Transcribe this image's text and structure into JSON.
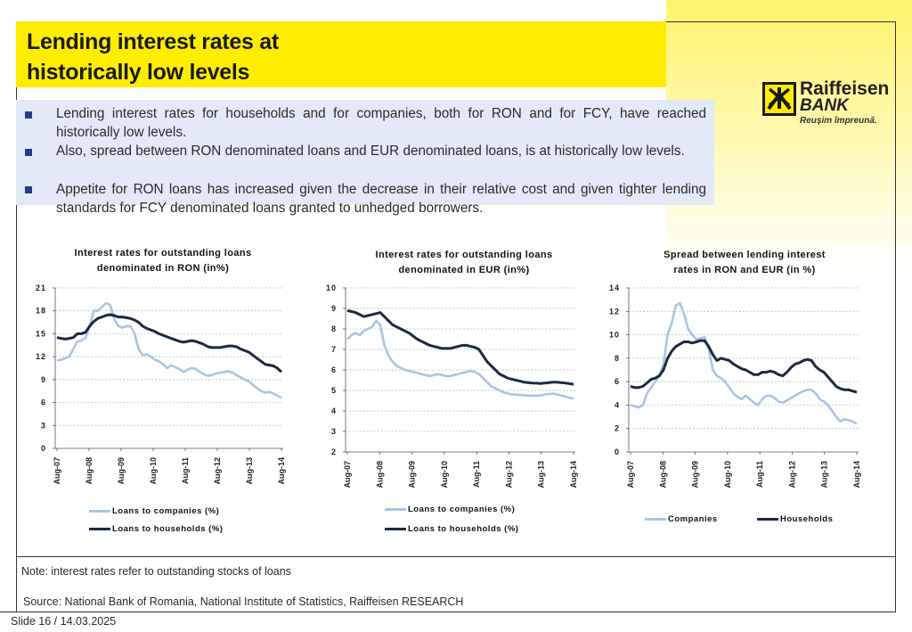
{
  "title": {
    "line1": "Lending interest rates at",
    "line2": "historically low levels"
  },
  "bullets": [
    "Lending interest rates for households and for companies, both for RON and for FCY, have reached historically low levels.",
    "Also, spread between RON denominated loans and EUR denominated loans, is at historically low levels.",
    "Appetite for RON loans has increased given the decrease in their relative cost and given tighter lending standards for FCY denominated loans granted to unhedged borrowers."
  ],
  "logo": {
    "name1": "Raiffeisen",
    "name2": "BANK",
    "slogan": "Reușim împreună."
  },
  "colors": {
    "companies": "#a9c6e3",
    "households": "#1c2a44",
    "accent_yellow": "#ffed00"
  },
  "chart_data": [
    {
      "type": "line",
      "title_line1": "Interest rates for outstanding loans",
      "title_line2": "denominated in RON (in%)",
      "ylim": [
        0,
        21
      ],
      "yticks": [
        "0",
        "3",
        "6",
        "9",
        "12",
        "15",
        "18",
        "21"
      ],
      "xticks": [
        "Aug-07",
        "Aug-08",
        "Aug-09",
        "Aug-10",
        "Aug-11",
        "Aug-12",
        "Aug-13",
        "Aug-14"
      ],
      "legend": [
        "Loans to companies (%)",
        "Loans to households (%)"
      ],
      "series": [
        {
          "name": "Loans to companies (%)",
          "values": [
            11.5,
            11.6,
            11.8,
            12,
            13,
            14,
            14.1,
            14.5,
            16,
            18,
            18,
            18.5,
            19,
            18.8,
            17,
            16,
            15.8,
            16,
            16,
            15,
            13,
            12.2,
            12.3,
            12,
            11.6,
            11.4,
            11,
            10.5,
            10.9,
            10.6,
            10.4,
            10,
            10.3,
            10.5,
            10.4,
            10,
            9.7,
            9.5,
            9.6,
            9.8,
            9.9,
            10,
            10.1,
            9.9,
            9.6,
            9.3,
            9,
            8.8,
            8.3,
            7.9,
            7.5,
            7.3,
            7.4,
            7.2,
            6.9,
            6.6
          ]
        },
        {
          "name": "Loans to households (%)",
          "values": [
            14.5,
            14.4,
            14.3,
            14.4,
            14.5,
            15,
            15,
            15.2,
            16,
            16.6,
            17,
            17.2,
            17.4,
            17.5,
            17.4,
            17.2,
            17.2,
            17.1,
            17,
            16.8,
            16.5,
            16,
            15.7,
            15.5,
            15.3,
            15,
            14.8,
            14.6,
            14.4,
            14.2,
            14,
            13.9,
            14,
            14.1,
            14,
            13.8,
            13.6,
            13.3,
            13.2,
            13.2,
            13.2,
            13.3,
            13.4,
            13.4,
            13.3,
            13,
            12.8,
            12.6,
            12.2,
            11.8,
            11.4,
            11,
            10.9,
            10.8,
            10.5,
            10
          ]
        }
      ]
    },
    {
      "type": "line",
      "title_line1": "Interest rates for outstanding loans",
      "title_line2": "denominated in EUR (in%)",
      "ylim": [
        2,
        10
      ],
      "yticks": [
        "2",
        "3",
        "4",
        "5",
        "6",
        "7",
        "8",
        "9",
        "10"
      ],
      "xticks": [
        "Aug-07",
        "Aug-08",
        "Aug-09",
        "Aug-10",
        "Aug-11",
        "Aug-12",
        "Aug-13",
        "Aug-14"
      ],
      "legend": [
        "Loans to companies (%)",
        "Loans to households (%)"
      ],
      "series": [
        {
          "name": "Loans to companies (%)",
          "values": [
            7.5,
            7.7,
            7.8,
            7.7,
            7.9,
            8,
            8.1,
            8.4,
            8.2,
            7.2,
            6.7,
            6.4,
            6.2,
            6.1,
            6,
            5.95,
            5.9,
            5.85,
            5.8,
            5.75,
            5.7,
            5.75,
            5.8,
            5.75,
            5.7,
            5.7,
            5.75,
            5.8,
            5.85,
            5.9,
            5.95,
            5.9,
            5.8,
            5.6,
            5.4,
            5.2,
            5.1,
            5,
            4.9,
            4.85,
            4.8,
            4.8,
            4.78,
            4.76,
            4.75,
            4.74,
            4.75,
            4.76,
            4.8,
            4.82,
            4.85,
            4.8,
            4.75,
            4.7,
            4.65,
            4.6
          ]
        },
        {
          "name": "Loans to households (%)",
          "values": [
            8.9,
            8.85,
            8.8,
            8.7,
            8.6,
            8.65,
            8.7,
            8.75,
            8.8,
            8.6,
            8.4,
            8.2,
            8.1,
            8,
            7.9,
            7.8,
            7.65,
            7.5,
            7.4,
            7.3,
            7.2,
            7.15,
            7.1,
            7.05,
            7.05,
            7.05,
            7.1,
            7.15,
            7.2,
            7.2,
            7.15,
            7.1,
            7,
            6.7,
            6.4,
            6.2,
            6,
            5.8,
            5.7,
            5.6,
            5.55,
            5.5,
            5.45,
            5.4,
            5.38,
            5.36,
            5.35,
            5.34,
            5.36,
            5.38,
            5.4,
            5.4,
            5.38,
            5.36,
            5.33,
            5.3
          ]
        }
      ]
    },
    {
      "type": "line",
      "title_line1": "Spread between lending interest",
      "title_line2": "rates in RON and EUR (in %)",
      "ylim": [
        0,
        14
      ],
      "yticks": [
        "0",
        "2",
        "4",
        "6",
        "8",
        "10",
        "12",
        "14"
      ],
      "xticks": [
        "Aug-07",
        "Aug-08",
        "Aug-09",
        "Aug-10",
        "Aug-11",
        "Aug-12",
        "Aug-13",
        "Aug-14"
      ],
      "legend": [
        "Companies",
        "Households"
      ],
      "series": [
        {
          "name": "Companies",
          "values": [
            4,
            3.9,
            3.8,
            4,
            5,
            5.5,
            6,
            6.5,
            7.5,
            10,
            11,
            12.5,
            12.7,
            11.8,
            10.5,
            10,
            9.6,
            9.7,
            9.8,
            8.8,
            7,
            6.5,
            6.3,
            6,
            5.5,
            5,
            4.7,
            4.5,
            4.8,
            4.5,
            4.2,
            4,
            4.5,
            4.8,
            4.8,
            4.6,
            4.3,
            4.2,
            4.4,
            4.6,
            4.8,
            5,
            5.2,
            5.3,
            5.3,
            5,
            4.5,
            4.3,
            4,
            3.5,
            3,
            2.6,
            2.8,
            2.7,
            2.6,
            2.4
          ]
        },
        {
          "name": "Households",
          "values": [
            5.6,
            5.5,
            5.5,
            5.6,
            5.9,
            6.2,
            6.3,
            6.5,
            7,
            8,
            8.6,
            9,
            9.2,
            9.4,
            9.4,
            9.3,
            9.4,
            9.5,
            9.5,
            9,
            8.3,
            7.8,
            8,
            7.9,
            7.8,
            7.5,
            7.3,
            7.1,
            7,
            6.8,
            6.6,
            6.6,
            6.8,
            6.8,
            6.9,
            6.8,
            6.6,
            6.5,
            6.8,
            7.2,
            7.5,
            7.6,
            7.8,
            7.9,
            7.8,
            7.3,
            7,
            6.8,
            6.4,
            6,
            5.6,
            5.4,
            5.3,
            5.3,
            5.2,
            5.1
          ]
        }
      ]
    }
  ],
  "note": "Note: interest rates refer to outstanding stocks of loans",
  "source": "Source: National Bank of Romania, National Institute of Statistics, Raiffeisen RESEARCH",
  "slide": "Slide 16 / 14.03.2025"
}
